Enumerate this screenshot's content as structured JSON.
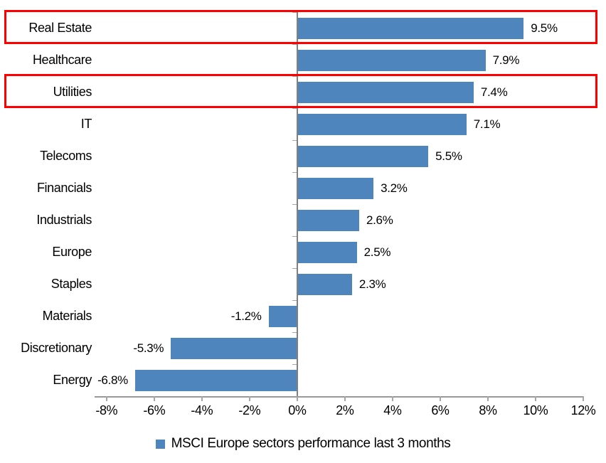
{
  "chart_data": {
    "type": "bar",
    "orientation": "horizontal",
    "title": "",
    "xlabel": "",
    "ylabel": "",
    "categories": [
      "Real Estate",
      "Healthcare",
      "Utilities",
      "IT",
      "Telecoms",
      "Financials",
      "Industrials",
      "Europe",
      "Staples",
      "Materials",
      "Discretionary",
      "Energy"
    ],
    "values": [
      9.5,
      7.9,
      7.4,
      7.1,
      5.5,
      3.2,
      2.6,
      2.5,
      2.3,
      -1.2,
      -5.3,
      -6.8
    ],
    "data_labels": [
      "9.5%",
      "7.9%",
      "7.4%",
      "7.1%",
      "5.5%",
      "3.2%",
      "2.6%",
      "2.5%",
      "2.3%",
      "-1.2%",
      "-5.3%",
      "-6.8%"
    ],
    "xlim": [
      -8.5,
      12
    ],
    "x_ticks": [
      {
        "value": -8,
        "label": "-8%"
      },
      {
        "value": -6,
        "label": "-6%"
      },
      {
        "value": -4,
        "label": "-4%"
      },
      {
        "value": -2,
        "label": "-2%"
      },
      {
        "value": 0,
        "label": "0%"
      },
      {
        "value": 2,
        "label": "2%"
      },
      {
        "value": 4,
        "label": "4%"
      },
      {
        "value": 6,
        "label": "6%"
      },
      {
        "value": 8,
        "label": "8%"
      },
      {
        "value": 10,
        "label": "10%"
      },
      {
        "value": 12,
        "label": "12%"
      }
    ],
    "grid": false,
    "legend": "MSCI Europe sectors performance last 3 months",
    "legend_position": "bottom",
    "highlighted_categories": [
      "Real Estate",
      "Utilities"
    ],
    "colors": {
      "bar": "#4E85BD",
      "highlight_box": "#FF0000",
      "axis_line": "#999999",
      "tick": "#A6A6A6",
      "zero_line": "#808080",
      "text": "#000000",
      "background": "#FFFFFF"
    }
  }
}
